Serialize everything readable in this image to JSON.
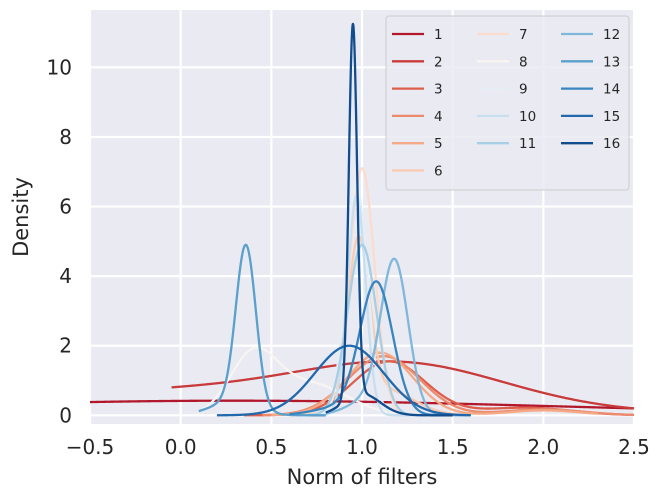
{
  "chart_data": {
    "type": "line",
    "title": "",
    "xlabel": "Norm of filters",
    "ylabel": "Density",
    "xlim": [
      -0.5,
      2.5
    ],
    "ylim": [
      -0.25,
      11.65
    ],
    "xticks": [
      -0.5,
      0.0,
      0.5,
      1.0,
      1.5,
      2.0,
      2.5
    ],
    "xtick_labels": [
      "−0.5",
      "0.0",
      "0.5",
      "1.0",
      "1.5",
      "2.0",
      "2.5"
    ],
    "yticks": [
      0,
      2,
      4,
      6,
      8,
      10
    ],
    "ytick_labels": [
      "0",
      "2",
      "4",
      "6",
      "8",
      "10"
    ],
    "grid": true,
    "legend_position": "top-right",
    "legend_columns": 3,
    "background_color": "#eaeaf2",
    "series": [
      {
        "name": "1",
        "color": "#b2182b",
        "components": [
          [
            0.3,
            1.8,
            1.0
          ]
        ],
        "range": [
          -0.5,
          2.5
        ]
      },
      {
        "name": "2",
        "color": "#c93a3b",
        "components": [
          [
            0.2,
            1.2,
            0.62
          ],
          [
            1.25,
            0.55,
            0.38
          ]
        ],
        "range": [
          -0.05,
          2.5
        ]
      },
      {
        "name": "3",
        "color": "#dd5f4b",
        "components": [
          [
            1.15,
            0.2,
            0.85
          ],
          [
            1.9,
            0.25,
            0.15
          ]
        ],
        "range": [
          0.35,
          2.5
        ]
      },
      {
        "name": "4",
        "color": "#ec8a6e",
        "components": [
          [
            1.12,
            0.2,
            0.9
          ],
          [
            2.0,
            0.22,
            0.1
          ]
        ],
        "range": [
          0.45,
          2.5
        ]
      },
      {
        "name": "5",
        "color": "#f4a987",
        "components": [
          [
            1.1,
            0.18,
            0.92
          ],
          [
            2.0,
            0.2,
            0.08
          ]
        ],
        "range": [
          0.5,
          2.3
        ]
      },
      {
        "name": "6",
        "color": "#f9cbb0",
        "components": [
          [
            0.98,
            0.06,
            0.7
          ],
          [
            1.12,
            0.16,
            0.3
          ]
        ],
        "range": [
          0.6,
          1.6
        ]
      },
      {
        "name": "7",
        "color": "#fbdccf",
        "components": [
          [
            1.0,
            0.07,
            1.0
          ]
        ],
        "range": [
          0.7,
          1.4
        ]
      },
      {
        "name": "8",
        "color": "#f7f4f2",
        "components": [
          [
            0.4,
            0.13,
            0.55
          ],
          [
            0.72,
            0.2,
            0.45
          ]
        ],
        "range": [
          0.12,
          1.3
        ]
      },
      {
        "name": "9",
        "color": "#e6eef4",
        "components": [
          [
            0.97,
            0.06,
            1.0
          ]
        ],
        "range": [
          0.7,
          1.3
        ]
      },
      {
        "name": "10",
        "color": "#c8dff0",
        "components": [
          [
            0.97,
            0.05,
            1.0
          ]
        ],
        "range": [
          0.75,
          1.3
        ]
      },
      {
        "name": "11",
        "color": "#a7cfe4",
        "components": [
          [
            1.0,
            0.08,
            1.0
          ]
        ],
        "range": [
          0.7,
          1.4
        ]
      },
      {
        "name": "12",
        "color": "#80b7da",
        "components": [
          [
            1.18,
            0.075,
            0.85
          ],
          [
            1.05,
            0.12,
            0.15
          ]
        ],
        "range": [
          0.8,
          1.6
        ]
      },
      {
        "name": "13",
        "color": "#5aa0cc",
        "components": [
          [
            0.36,
            0.055,
            0.85
          ],
          [
            0.28,
            0.12,
            0.15
          ]
        ],
        "range": [
          0.1,
          0.8
        ]
      },
      {
        "name": "14",
        "color": "#3885bf",
        "components": [
          [
            1.08,
            0.09,
            0.9
          ],
          [
            0.9,
            0.15,
            0.1
          ]
        ],
        "range": [
          0.6,
          1.45
        ]
      },
      {
        "name": "15",
        "color": "#2169ac",
        "components": [
          [
            0.93,
            0.19,
            1.0
          ]
        ],
        "range": [
          0.2,
          1.6
        ]
      },
      {
        "name": "16",
        "color": "#114d8e",
        "components": [
          [
            0.95,
            0.023,
            0.8
          ],
          [
            1.0,
            0.1,
            0.2
          ]
        ],
        "range": [
          0.8,
          1.5
        ]
      }
    ],
    "peak_density": [
      0.42,
      1.55,
      1.55,
      1.7,
      1.8,
      5.15,
      7.1,
      1.95,
      6.6,
      6.3,
      4.9,
      4.5,
      4.9,
      3.85,
      2.0,
      11.25
    ]
  }
}
